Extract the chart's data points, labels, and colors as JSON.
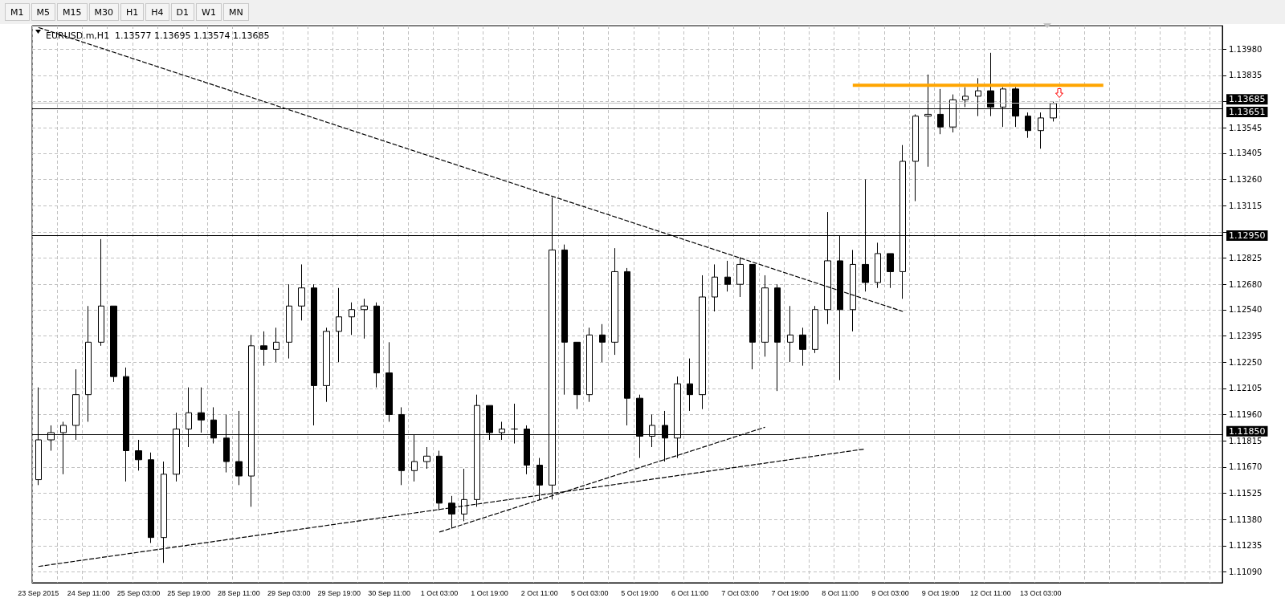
{
  "chart_data": {
    "type": "candlestick",
    "title": "EURUSD.m,H1  1.13577 1.13695 1.13574 1.13685",
    "annotations": [
      "M1",
      "M5",
      "M15",
      "M30",
      "H1",
      "H4",
      "D1",
      "W1",
      "MN"
    ],
    "categories": [
      "23 Sep 2015",
      null,
      null,
      null,
      "24 Sep 11:00",
      null,
      null,
      null,
      "25 Sep 03:00",
      null,
      null,
      null,
      "25 Sep 19:00",
      null,
      null,
      null,
      "28 Sep 11:00",
      null,
      null,
      null,
      "29 Sep 03:00",
      null,
      null,
      null,
      "29 Sep 19:00",
      null,
      null,
      null,
      "30 Sep 11:00",
      null,
      null,
      null,
      "1 Oct 03:00",
      null,
      null,
      null,
      "1 Oct 19:00",
      null,
      null,
      null,
      "2 Oct 11:00",
      null,
      null,
      null,
      "5 Oct 03:00",
      null,
      null,
      null,
      "5 Oct 19:00",
      null,
      null,
      null,
      "6 Oct 11:00",
      null,
      null,
      null,
      "7 Oct 03:00",
      null,
      null,
      null,
      "7 Oct 19:00",
      null,
      null,
      null,
      "8 Oct 11:00",
      null,
      null,
      null,
      "9 Oct 03:00",
      null,
      null,
      null,
      "9 Oct 19:00",
      null,
      null,
      null,
      "12 Oct 11:00",
      null,
      null,
      null,
      "13 Oct 03:00",
      null,
      null,
      null,
      null,
      null,
      null,
      null,
      null,
      null,
      null,
      null,
      null,
      null,
      null
    ],
    "ohlc": [
      [
        1.116,
        1.1211,
        1.1157,
        1.1182
      ],
      [
        1.1182,
        1.119,
        1.1176,
        1.1186
      ],
      [
        1.1186,
        1.1192,
        1.1163,
        1.119
      ],
      [
        1.119,
        1.1221,
        1.1182,
        1.1207
      ],
      [
        1.1207,
        1.1256,
        1.1192,
        1.1236
      ],
      [
        1.1236,
        1.1293,
        1.1234,
        1.1256
      ],
      [
        1.1256,
        1.1256,
        1.1214,
        1.1217
      ],
      [
        1.1217,
        1.1222,
        1.1159,
        1.1176
      ],
      [
        1.1176,
        1.1182,
        1.1165,
        1.1171
      ],
      [
        1.1171,
        1.1175,
        1.1125,
        1.1128
      ],
      [
        1.1128,
        1.117,
        1.1114,
        1.1163
      ],
      [
        1.1163,
        1.1197,
        1.1159,
        1.1188
      ],
      [
        1.1188,
        1.1211,
        1.1178,
        1.1197
      ],
      [
        1.1197,
        1.1211,
        1.1186,
        1.1193
      ],
      [
        1.1193,
        1.12,
        1.118,
        1.1183
      ],
      [
        1.1183,
        1.1196,
        1.1164,
        1.117
      ],
      [
        1.117,
        1.1198,
        1.1157,
        1.1162
      ],
      [
        1.1162,
        1.124,
        1.1145,
        1.1234
      ],
      [
        1.1234,
        1.1242,
        1.1223,
        1.1232
      ],
      [
        1.1232,
        1.1244,
        1.1225,
        1.1236
      ],
      [
        1.1236,
        1.1268,
        1.1227,
        1.1256
      ],
      [
        1.1256,
        1.1279,
        1.1248,
        1.1266
      ],
      [
        1.1266,
        1.1268,
        1.119,
        1.1212
      ],
      [
        1.1212,
        1.1244,
        1.1203,
        1.1242
      ],
      [
        1.1242,
        1.1266,
        1.1225,
        1.125
      ],
      [
        1.125,
        1.1258,
        1.124,
        1.1254
      ],
      [
        1.1254,
        1.126,
        1.1238,
        1.1256
      ],
      [
        1.1256,
        1.1258,
        1.1211,
        1.1219
      ],
      [
        1.1219,
        1.1236,
        1.1192,
        1.1196
      ],
      [
        1.1196,
        1.12,
        1.1157,
        1.1165
      ],
      [
        1.1165,
        1.1185,
        1.1159,
        1.117
      ],
      [
        1.117,
        1.1178,
        1.1166,
        1.1173
      ],
      [
        1.1173,
        1.1176,
        1.1143,
        1.1147
      ],
      [
        1.1147,
        1.1151,
        1.1133,
        1.1141
      ],
      [
        1.1141,
        1.1166,
        1.1137,
        1.1149
      ],
      [
        1.1149,
        1.1207,
        1.1145,
        1.1201
      ],
      [
        1.1201,
        1.1201,
        1.1182,
        1.1186
      ],
      [
        1.1186,
        1.1192,
        1.1182,
        1.1188
      ],
      [
        1.1188,
        1.1202,
        1.118,
        1.1188
      ],
      [
        1.1188,
        1.119,
        1.1163,
        1.1168
      ],
      [
        1.1168,
        1.1172,
        1.1149,
        1.1157
      ],
      [
        1.1157,
        1.1316,
        1.1149,
        1.1287
      ],
      [
        1.1287,
        1.129,
        1.1207,
        1.1236
      ],
      [
        1.1236,
        1.1236,
        1.1199,
        1.1207
      ],
      [
        1.1207,
        1.1244,
        1.1203,
        1.124
      ],
      [
        1.124,
        1.1246,
        1.1225,
        1.1236
      ],
      [
        1.1236,
        1.1288,
        1.1229,
        1.1275
      ],
      [
        1.1275,
        1.1277,
        1.119,
        1.1205
      ],
      [
        1.1205,
        1.1207,
        1.1172,
        1.1184
      ],
      [
        1.1184,
        1.1196,
        1.1178,
        1.119
      ],
      [
        1.119,
        1.1198,
        1.117,
        1.1183
      ],
      [
        1.1183,
        1.1217,
        1.1172,
        1.1213
      ],
      [
        1.1213,
        1.1227,
        1.1198,
        1.1207
      ],
      [
        1.1207,
        1.1273,
        1.1199,
        1.1261
      ],
      [
        1.1261,
        1.1279,
        1.1253,
        1.1272
      ],
      [
        1.1272,
        1.1281,
        1.1264,
        1.1268
      ],
      [
        1.1268,
        1.1283,
        1.1261,
        1.1279
      ],
      [
        1.1279,
        1.1279,
        1.1221,
        1.1236
      ],
      [
        1.1236,
        1.1273,
        1.1228,
        1.1266
      ],
      [
        1.1266,
        1.1268,
        1.1209,
        1.1236
      ],
      [
        1.1236,
        1.1256,
        1.1225,
        1.124
      ],
      [
        1.124,
        1.1244,
        1.1223,
        1.1232
      ],
      [
        1.1232,
        1.1256,
        1.123,
        1.1254
      ],
      [
        1.1254,
        1.1308,
        1.1246,
        1.1281
      ],
      [
        1.1281,
        1.1295,
        1.1215,
        1.1254
      ],
      [
        1.1254,
        1.1287,
        1.1242,
        1.1279
      ],
      [
        1.1279,
        1.1326,
        1.1264,
        1.1269
      ],
      [
        1.1269,
        1.1291,
        1.1266,
        1.1285
      ],
      [
        1.1285,
        1.1285,
        1.1266,
        1.1275
      ],
      [
        1.1275,
        1.1345,
        1.126,
        1.1336
      ],
      [
        1.1336,
        1.1362,
        1.1314,
        1.1361
      ],
      [
        1.1361,
        1.1384,
        1.1333,
        1.1362
      ],
      [
        1.1362,
        1.1376,
        1.1351,
        1.1355
      ],
      [
        1.1355,
        1.1373,
        1.1352,
        1.137
      ],
      [
        1.137,
        1.1377,
        1.1366,
        1.1372
      ],
      [
        1.1372,
        1.1382,
        1.1361,
        1.1375
      ],
      [
        1.1375,
        1.1396,
        1.1361,
        1.1366
      ],
      [
        1.1366,
        1.1377,
        1.1355,
        1.1376
      ],
      [
        1.1376,
        1.1377,
        1.1355,
        1.1361
      ],
      [
        1.1361,
        1.1363,
        1.1349,
        1.1353
      ],
      [
        1.1353,
        1.1363,
        1.1343,
        1.136
      ],
      [
        1.136,
        1.1369,
        1.1358,
        1.1368
      ],
      null,
      null,
      null,
      null,
      null,
      null,
      null,
      null,
      null,
      null,
      null,
      null,
      null
    ],
    "color": "#000000",
    "series": [
      {
        "type": "line",
        "color": "#000000",
        "line_style": "dashed",
        "values": [
          1.141,
          null,
          null,
          null,
          null,
          null,
          null,
          null,
          null,
          null,
          null,
          null,
          null,
          null,
          null,
          null,
          null,
          null,
          null,
          null,
          null,
          null,
          null,
          null,
          null,
          null,
          null,
          null,
          null,
          null,
          null,
          null,
          null,
          null,
          null,
          null,
          null,
          null,
          null,
          null,
          null,
          null,
          null,
          null,
          null,
          null,
          null,
          null,
          null,
          null,
          null,
          null,
          null,
          null,
          null,
          null,
          null,
          null,
          null,
          null,
          null,
          null,
          null,
          null,
          null,
          null,
          null,
          null,
          null,
          1.1253,
          null,
          null,
          null,
          null,
          null,
          null,
          null,
          null,
          null,
          null,
          null,
          null,
          null,
          null,
          null,
          null,
          null,
          null,
          null,
          null,
          null,
          null,
          null,
          null,
          null
        ]
      },
      {
        "type": "line",
        "color": "#000000",
        "line_style": "dashed",
        "values": [
          1.1112,
          null,
          null,
          null,
          null,
          null,
          null,
          null,
          null,
          null,
          null,
          null,
          null,
          null,
          null,
          null,
          null,
          null,
          null,
          null,
          null,
          null,
          null,
          null,
          null,
          null,
          null,
          null,
          null,
          null,
          null,
          null,
          null,
          null,
          null,
          null,
          null,
          null,
          null,
          null,
          null,
          null,
          null,
          null,
          null,
          null,
          null,
          null,
          null,
          null,
          null,
          null,
          null,
          null,
          null,
          null,
          null,
          null,
          null,
          null,
          null,
          null,
          null,
          null,
          null,
          null,
          1.1177,
          null,
          null,
          null,
          null,
          null,
          null,
          null,
          null,
          null,
          null,
          null,
          null,
          null,
          null,
          null,
          null,
          null,
          null,
          null,
          null,
          null,
          null,
          null,
          null,
          null,
          null,
          null,
          null
        ]
      },
      {
        "type": "line",
        "color": "#000000",
        "line_style": "dashed",
        "values": [
          null,
          null,
          null,
          null,
          null,
          null,
          null,
          null,
          null,
          null,
          null,
          null,
          null,
          null,
          null,
          null,
          null,
          null,
          null,
          null,
          null,
          null,
          null,
          null,
          null,
          null,
          null,
          null,
          null,
          null,
          null,
          null,
          1.1131,
          null,
          null,
          null,
          null,
          null,
          null,
          null,
          null,
          null,
          null,
          null,
          null,
          null,
          null,
          null,
          null,
          null,
          null,
          null,
          null,
          null,
          null,
          null,
          null,
          null,
          1.1189,
          null,
          null,
          null,
          null,
          null,
          null,
          null,
          null,
          null,
          null,
          null,
          null,
          null,
          null,
          null,
          null,
          null,
          null,
          null,
          null,
          null,
          null,
          null,
          null,
          null,
          null,
          null,
          null,
          null,
          null,
          null,
          null,
          null,
          null,
          null,
          null
        ]
      },
      {
        "type": "line",
        "color": "#ffa500",
        "line_style": "solid",
        "values": [
          null,
          null,
          null,
          null,
          null,
          null,
          null,
          null,
          null,
          null,
          null,
          null,
          null,
          null,
          null,
          null,
          null,
          null,
          null,
          null,
          null,
          null,
          null,
          null,
          null,
          null,
          null,
          null,
          null,
          null,
          null,
          null,
          null,
          null,
          null,
          null,
          null,
          null,
          null,
          null,
          null,
          null,
          null,
          null,
          null,
          null,
          null,
          null,
          null,
          null,
          null,
          null,
          null,
          null,
          null,
          null,
          null,
          null,
          null,
          null,
          null,
          null,
          null,
          null,
          null,
          1.1378,
          null,
          null,
          null,
          null,
          null,
          null,
          null,
          null,
          null,
          null,
          null,
          null,
          null,
          null,
          null,
          null,
          null,
          null,
          null,
          1.1378,
          null,
          null,
          null,
          null,
          null,
          null,
          null,
          null,
          null
        ]
      }
    ],
    "ref_lines": [
      {
        "axis": "y",
        "value": 1.13685,
        "label": "1.13685",
        "color": "#c0c0c0"
      },
      {
        "axis": "y",
        "value": 1.13651,
        "label": "1.13651",
        "color": "#000000"
      },
      {
        "axis": "y",
        "value": 1.1295,
        "label": "1.12950",
        "color": "#000000"
      },
      {
        "axis": "y",
        "value": 1.1185,
        "label": "1.11850",
        "color": "#000000"
      }
    ],
    "ylim": [
      1.1103,
      1.1411
    ],
    "yticks": [
      {
        "value": 1.1398,
        "label": "1.13980"
      },
      {
        "value": 1.13835,
        "label": "1.13835"
      },
      {
        "value": 1.1369,
        "label": null
      },
      {
        "value": 1.13545,
        "label": "1.13545"
      },
      {
        "value": 1.13405,
        "label": "1.13405"
      },
      {
        "value": 1.1326,
        "label": "1.13260"
      },
      {
        "value": 1.13115,
        "label": "1.13115"
      },
      {
        "value": 1.1297,
        "label": null
      },
      {
        "value": 1.12825,
        "label": "1.12825"
      },
      {
        "value": 1.1268,
        "label": "1.12680"
      },
      {
        "value": 1.1254,
        "label": "1.12540"
      },
      {
        "value": 1.12395,
        "label": "1.12395"
      },
      {
        "value": 1.1225,
        "label": "1.12250"
      },
      {
        "value": 1.12105,
        "label": "1.12105"
      },
      {
        "value": 1.1196,
        "label": "1.11960"
      },
      {
        "value": 1.11815,
        "label": "1.11815"
      },
      {
        "value": 1.1167,
        "label": "1.11670"
      },
      {
        "value": 1.11525,
        "label": "1.11525"
      },
      {
        "value": 1.1138,
        "label": "1.11380"
      },
      {
        "value": 1.11235,
        "label": "1.11235"
      },
      {
        "value": 1.1109,
        "label": "1.11090"
      }
    ],
    "grid": true
  }
}
